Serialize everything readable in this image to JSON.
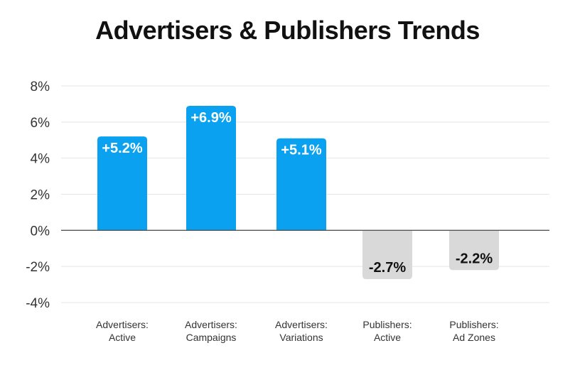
{
  "chart_data": {
    "type": "bar",
    "title": "Advertisers & Publishers Trends",
    "categories": [
      [
        "Advertisers:",
        "Active"
      ],
      [
        "Advertisers:",
        "Campaigns"
      ],
      [
        "Advertisers:",
        "Variations"
      ],
      [
        "Publishers:",
        "Active"
      ],
      [
        "Publishers:",
        "Ad Zones"
      ]
    ],
    "values": [
      5.2,
      6.9,
      5.1,
      -2.7,
      -2.2
    ],
    "data_labels": [
      "+5.2%",
      "+6.9%",
      "+5.1%",
      "-2.7%",
      "-2.2%"
    ],
    "yticks": [
      8,
      6,
      4,
      2,
      0,
      -2,
      -4
    ],
    "ytick_labels": [
      "8%",
      "6%",
      "4%",
      "2%",
      "0%",
      "-2%",
      "-4%"
    ],
    "ylim": [
      -4,
      8
    ],
    "grid": true,
    "colors": {
      "positive": "#0aa2f0",
      "negative": "#d9d9d9",
      "positive_label": "#ffffff",
      "negative_label": "#111111",
      "grid": "#e4e4e4",
      "zero_line": "#555555"
    }
  }
}
